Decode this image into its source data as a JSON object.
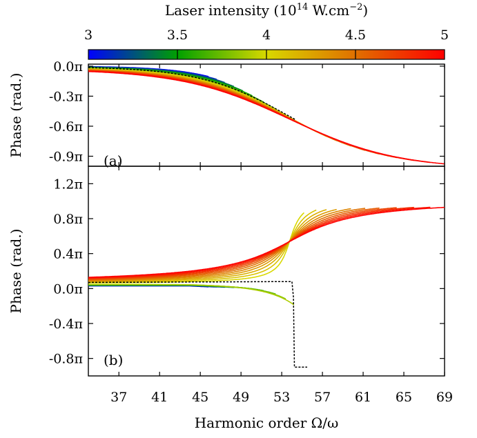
{
  "chart_data": {
    "colorbar": {
      "label": "Laser intensity (10^14 W.cm^-2)",
      "label_main": "Laser intensity (10",
      "label_exp": "14",
      "label_unit": " W.cm",
      "label_exp2": "−2",
      "label_close": ")",
      "ticks": [
        "3",
        "3.5",
        "4",
        "4.5",
        "5"
      ],
      "range": [
        3,
        5
      ],
      "colormap": [
        "#0000ff",
        "#00a000",
        "#d8d800",
        "#e07000",
        "#ff0000"
      ]
    },
    "xlabel": "Harmonic order Ω/ω",
    "xlim": [
      34,
      69
    ],
    "xticks": [
      "37",
      "41",
      "45",
      "49",
      "53",
      "57",
      "61",
      "65",
      "69"
    ],
    "panels": [
      {
        "tag": "(a)",
        "type": "line",
        "ylabel": "Phase (rad.)",
        "ylim": [
          -1.0,
          0.02
        ],
        "yticks": [
          {
            "value": 0.0,
            "label": "0.0π"
          },
          {
            "value": -0.3,
            "label": "-0.3π"
          },
          {
            "value": -0.6,
            "label": "-0.6π"
          },
          {
            "value": -0.9,
            "label": "-0.9π"
          }
        ],
        "curve_model": {
          "form": "sigmoid",
          "center": 53.8,
          "scale": 3.7,
          "low": -1.0,
          "high": 0.0
        },
        "reference_curve": {
          "style": "black-dashed",
          "x_end": 54.5
        }
      },
      {
        "tag": "(b)",
        "type": "line",
        "ylabel": "Phase (rad.)",
        "ylim": [
          -1.0,
          1.4
        ],
        "yticks": [
          {
            "value": 1.2,
            "label": "1.2π"
          },
          {
            "value": 0.8,
            "label": "0.8π"
          },
          {
            "value": 0.4,
            "label": "0.4π"
          },
          {
            "value": 0.0,
            "label": "0.0π"
          },
          {
            "value": -0.4,
            "label": "-0.4π"
          },
          {
            "value": -0.8,
            "label": "-0.8π"
          }
        ],
        "curve_model": {
          "form": "resonance",
          "center": 53.8,
          "baseline": 0.05,
          "high": 1.05
        },
        "reference_curve": {
          "style": "black-dashed",
          "x_end": 55.5,
          "low_value": -0.9
        }
      }
    ],
    "intensities": [
      3.0,
      3.1,
      3.2,
      3.3,
      3.4,
      3.5,
      3.6,
      3.7,
      3.8,
      3.9,
      4.0,
      4.1,
      4.2,
      4.3,
      4.4,
      4.5,
      4.6,
      4.7,
      4.8,
      4.9,
      5.0
    ],
    "curve_x_end": [
      45.8,
      46.6,
      47.4,
      48.3,
      49.2,
      50.1,
      51.2,
      52.4,
      53.4,
      54.2,
      55.2,
      56.4,
      57.4,
      58.4,
      59.8,
      61.2,
      62.6,
      64.3,
      66.0,
      67.6,
      69.0
    ]
  }
}
